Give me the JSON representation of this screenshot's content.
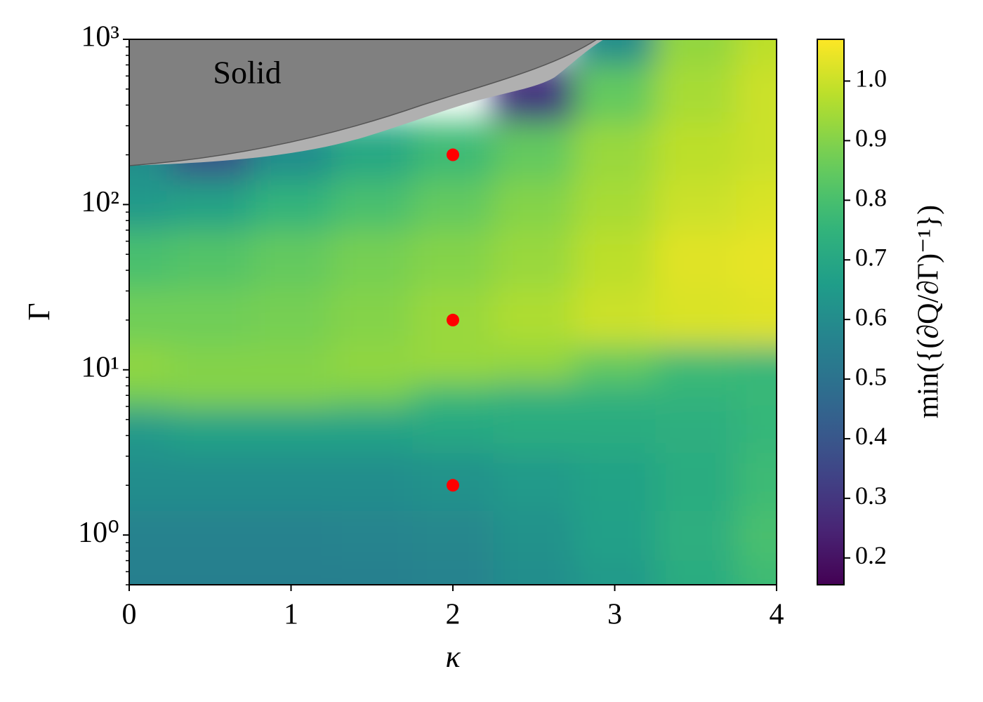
{
  "chart_data": {
    "type": "heatmap",
    "xlabel": "κ",
    "ylabel": "Γ",
    "colorbar_label": "min({(∂Q/∂Γ)⁻¹})",
    "annotation": "Solid",
    "xlim": [
      0,
      4
    ],
    "xticks": [
      0,
      1,
      2,
      3,
      4
    ],
    "ylim": [
      0.5,
      1000
    ],
    "yscale": "log",
    "yticks": [
      {
        "value": 1,
        "label": "10⁰"
      },
      {
        "value": 10,
        "label": "10¹"
      },
      {
        "value": 100,
        "label": "10²"
      },
      {
        "value": 1000,
        "label": "10³"
      }
    ],
    "colormap": "viridis",
    "clim": [
      0.155,
      1.07
    ],
    "cticks": [
      0.2,
      0.3,
      0.4,
      0.5,
      0.6,
      0.7,
      0.8,
      0.9,
      {
        "value": 1,
        "label": "1.0"
      }
    ],
    "z_x": [
      0,
      0.5,
      1,
      1.5,
      2,
      2.5,
      3,
      3.5,
      4
    ],
    "z_y": [
      0.5,
      1,
      2,
      5,
      7,
      10,
      20,
      50,
      100,
      200,
      500,
      1000
    ],
    "z": [
      [
        0.55,
        0.55,
        0.55,
        0.55,
        0.56,
        0.6,
        0.65,
        0.72,
        0.78
      ],
      [
        0.56,
        0.56,
        0.56,
        0.57,
        0.58,
        0.62,
        0.67,
        0.73,
        0.8
      ],
      [
        0.6,
        0.6,
        0.6,
        0.6,
        0.62,
        0.65,
        0.68,
        0.72,
        0.78
      ],
      [
        0.65,
        0.68,
        0.68,
        0.68,
        0.7,
        0.72,
        0.72,
        0.73,
        0.76
      ],
      [
        0.88,
        0.9,
        0.9,
        0.88,
        0.78,
        0.74,
        0.74,
        0.75,
        0.77
      ],
      [
        0.92,
        0.9,
        0.9,
        0.92,
        0.93,
        0.92,
        0.85,
        0.78,
        0.76
      ],
      [
        0.87,
        0.87,
        0.88,
        0.9,
        0.93,
        0.96,
        1.0,
        1.02,
        1.03
      ],
      [
        0.8,
        0.82,
        0.85,
        0.88,
        0.9,
        0.93,
        0.98,
        1.03,
        1.04
      ],
      [
        0.65,
        0.68,
        0.75,
        0.8,
        0.85,
        0.9,
        0.95,
        1.0,
        1.02
      ],
      [
        0.6,
        0.4,
        0.6,
        0.7,
        0.78,
        0.85,
        0.93,
        0.98,
        1.0
      ],
      [
        null,
        null,
        null,
        null,
        null,
        0.3,
        0.85,
        0.95,
        1.0
      ],
      [
        null,
        null,
        null,
        null,
        null,
        null,
        0.6,
        0.92,
        0.98
      ]
    ],
    "points": {
      "color": "#ff0000",
      "x": [
        2,
        2,
        2
      ],
      "y": [
        2,
        20,
        200
      ]
    }
  }
}
